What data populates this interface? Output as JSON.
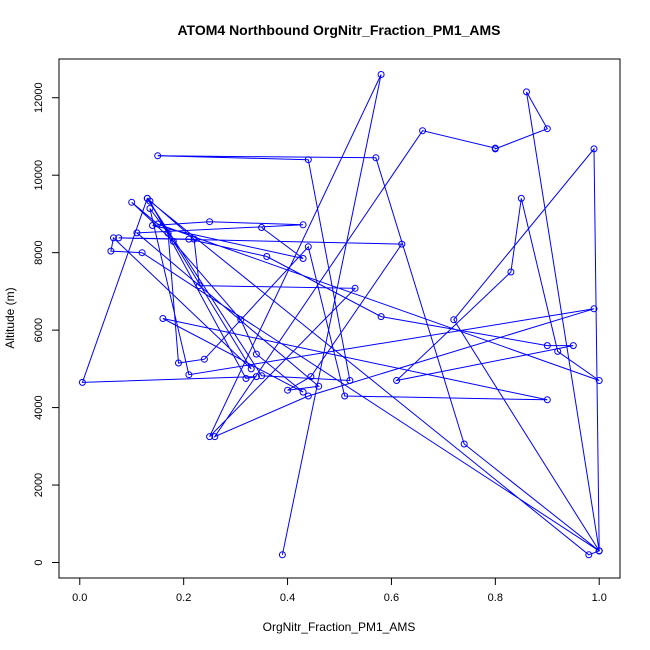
{
  "chart_data": {
    "type": "line",
    "title": "ATOM4 Northbound OrgNitr_Fraction_PM1_AMS",
    "xlabel": "OrgNitr_Fraction_PM1_AMS",
    "ylabel": "Altitude (m)",
    "xlim": [
      -0.04,
      1.04
    ],
    "ylim": [
      -400,
      13000
    ],
    "xticks": [
      "0.0",
      "0.2",
      "0.4",
      "0.6",
      "0.8",
      "1.0"
    ],
    "xtick_values": [
      0,
      0.2,
      0.4,
      0.6,
      0.8,
      1.0
    ],
    "yticks": [
      "0",
      "2000",
      "4000",
      "6000",
      "8000",
      "10000",
      "12000"
    ],
    "ytick_values": [
      0,
      2000,
      4000,
      6000,
      8000,
      10000,
      12000
    ],
    "grid": false,
    "series_color": "#0000ff",
    "marker": "open-circle",
    "series": [
      {
        "name": "",
        "x": [
          0.39,
          0.58,
          0.25,
          0.53,
          0.23,
          0.22,
          0.13,
          0.005,
          0.34,
          0.32,
          0.135,
          0.98,
          1.0,
          0.74,
          0.57,
          0.15,
          0.44,
          0.52,
          0.35,
          0.13,
          0.33,
          0.065,
          0.06,
          0.12,
          1.0,
          0.72,
          0.99,
          1.0,
          0.86,
          0.9,
          0.8,
          0.8,
          0.66,
          0.26,
          0.44,
          0.99,
          0.21,
          0.135,
          0.17,
          0.19,
          0.24,
          0.44,
          0.51,
          0.9,
          0.16,
          0.43,
          0.34,
          0.31,
          0.18,
          0.1,
          0.15,
          1.0,
          0.92,
          0.85,
          0.83,
          0.61,
          0.95,
          0.9,
          0.58,
          0.36,
          0.21,
          0.075,
          0.62,
          0.445,
          0.4,
          0.46,
          0.11,
          0.43,
          0.25,
          0.14,
          0.43,
          0.35
        ],
        "y": [
          200,
          12600,
          3250,
          7080,
          7150,
          8350,
          9400,
          4650,
          4800,
          4750,
          9330,
          200,
          300,
          3060,
          10450,
          10500,
          10400,
          4700,
          4820,
          9400,
          5000,
          8380,
          8040,
          8000,
          300,
          6270,
          10680,
          300,
          12150,
          11200,
          10680,
          10700,
          11150,
          3250,
          4300,
          6550,
          4850,
          9140,
          8500,
          5150,
          5250,
          8150,
          4300,
          4200,
          6300,
          4400,
          5380,
          6270,
          8290,
          9300,
          8740,
          4700,
          5450,
          9400,
          7500,
          4700,
          5600,
          5600,
          6350,
          7900,
          8350,
          8380,
          8220,
          4800,
          4450,
          4550,
          8510,
          8720,
          8800,
          8700,
          7850,
          8650
        ]
      }
    ]
  }
}
